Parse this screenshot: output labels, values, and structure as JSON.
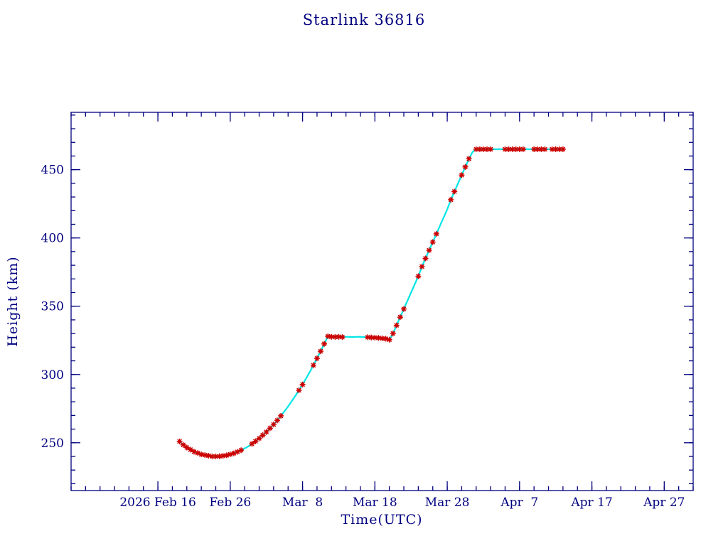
{
  "title": "Starlink 36816",
  "colors": {
    "axis": "#000080",
    "text": "#000080",
    "marker": "#cc0000",
    "line": "#00e5e5",
    "background": "#ffffff"
  },
  "chart_data": {
    "type": "scatter",
    "title": "Starlink 36816",
    "xlabel": "Time(UTC)",
    "ylabel": "Height (km)",
    "x_unit": "days since 2026 Feb 16",
    "xlim": [
      -12,
      74
    ],
    "ylim": [
      215,
      492
    ],
    "x_ticks": [
      {
        "day": 0,
        "label": "2026 Feb 16"
      },
      {
        "day": 10,
        "label": "Feb 26"
      },
      {
        "day": 20,
        "label": "Mar  8"
      },
      {
        "day": 30,
        "label": "Mar 18"
      },
      {
        "day": 40,
        "label": "Mar 28"
      },
      {
        "day": 50,
        "label": "Apr  7"
      },
      {
        "day": 60,
        "label": "Apr 17"
      },
      {
        "day": 70,
        "label": "Apr 27"
      }
    ],
    "y_ticks": [
      250,
      300,
      350,
      400,
      450
    ],
    "x_minor_step": 2,
    "y_minor_step": 10,
    "grid": false,
    "legend": false,
    "series": [
      {
        "name": "height_km",
        "x": [
          3,
          3.5,
          4,
          4.5,
          5,
          5.5,
          6,
          6.5,
          7,
          7.5,
          8,
          8.5,
          9,
          9.5,
          10,
          10.5,
          11,
          11.5,
          12,
          12.5,
          13,
          13.5,
          14,
          14.5,
          15,
          15.5,
          16,
          16.5,
          17,
          17.5,
          18,
          18.5,
          19,
          19.5,
          20,
          20.5,
          21,
          21.5,
          22,
          22.5,
          23,
          23.5,
          24,
          24.5,
          25,
          25.5,
          26,
          26.5,
          27,
          27.5,
          28,
          28.5,
          29,
          29.5,
          30,
          30.5,
          31,
          31.5,
          32,
          32.5,
          33,
          33.5,
          34,
          34.5,
          35,
          35.5,
          36,
          36.5,
          37,
          37.5,
          38,
          38.5,
          39,
          39.5,
          40,
          40.5,
          41,
          41.5,
          42,
          42.5,
          43,
          43.5,
          44,
          44.5,
          45,
          45.5,
          46,
          46.5,
          47,
          47.5,
          48,
          48.5,
          49,
          49.5,
          50,
          50.5,
          51,
          51.5,
          52,
          52.5,
          53,
          53.5,
          54,
          54.5,
          55,
          55.5,
          56
        ],
        "y": [
          251,
          248.5,
          246.5,
          245,
          243.5,
          242.5,
          241.5,
          241,
          240.5,
          240,
          240,
          240.1,
          240.4,
          240.8,
          241.5,
          242.3,
          243.3,
          244.5,
          245.9,
          247.4,
          249.2,
          251.1,
          253.2,
          255.5,
          257.9,
          260.6,
          263.4,
          266.4,
          269.7,
          273,
          276.6,
          280.4,
          284.3,
          288.4,
          292.7,
          297.2,
          301.9,
          306.8,
          311.8,
          317,
          322.4,
          328,
          327.6,
          327.5,
          327.6,
          327.4,
          327.6,
          327.5,
          327.4,
          327.6,
          327.5,
          327.4,
          327.3,
          327.1,
          327,
          326.8,
          326.5,
          326.2,
          325.5,
          330,
          336,
          342,
          348,
          354,
          360,
          366,
          372,
          379,
          385,
          391,
          397,
          403,
          409,
          415,
          421,
          428,
          434,
          440,
          446,
          452,
          458,
          463,
          465,
          465,
          465,
          465,
          465,
          465,
          465,
          465,
          465,
          465,
          465,
          465,
          465,
          465,
          465,
          465,
          465,
          465,
          465,
          465,
          465,
          465,
          465,
          465,
          465
        ]
      }
    ],
    "marker_gaps": [
      [
        18,
        19
      ],
      [
        29,
        32
      ],
      [
        35,
        36
      ],
      [
        46,
        51
      ],
      [
        63,
        65
      ],
      [
        72,
        74
      ],
      [
        77,
        77
      ],
      [
        81,
        81
      ],
      [
        87,
        89
      ],
      [
        96,
        97
      ],
      [
        102,
        102
      ]
    ]
  }
}
